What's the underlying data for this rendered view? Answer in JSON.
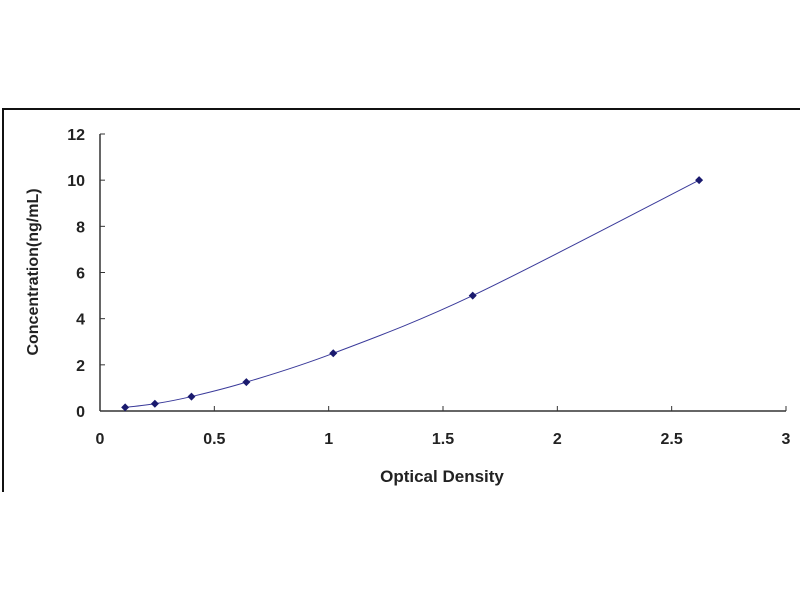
{
  "chart_data": {
    "type": "scatter",
    "title": "",
    "xlabel": "Optical Density",
    "ylabel": "Concentration(ng/mL)",
    "xlim": [
      0,
      3
    ],
    "ylim": [
      0,
      12
    ],
    "xticks": [
      "0",
      "0.5",
      "1",
      "1.5",
      "2",
      "2.5",
      "3"
    ],
    "yticks": [
      "0",
      "2",
      "4",
      "6",
      "8",
      "10",
      "12"
    ],
    "grid": false,
    "trendline": "smooth curve",
    "colors": {
      "points": "#1a1a6e",
      "curve": "#3a3a9a"
    },
    "series": [
      {
        "x": [
          0.11,
          0.24,
          0.4,
          0.64,
          1.02,
          1.63,
          2.62
        ],
        "y": [
          0.156,
          0.312,
          0.625,
          1.25,
          2.5,
          5,
          10
        ]
      }
    ]
  }
}
